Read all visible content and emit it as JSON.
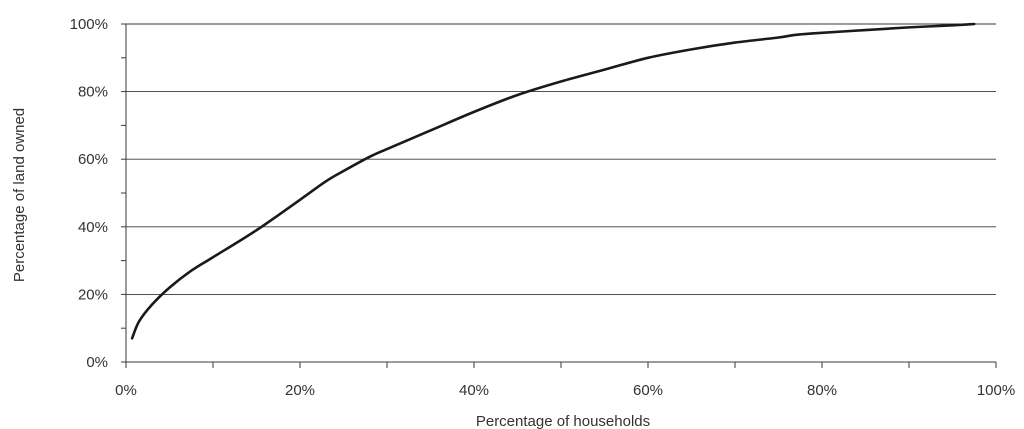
{
  "chart_data": {
    "type": "line",
    "title": "",
    "xlabel": "Percentage of households",
    "ylabel": "Percentage of land owned",
    "xlim": [
      0,
      100
    ],
    "ylim": [
      0,
      100
    ],
    "x_ticks": [
      0,
      20,
      40,
      60,
      80,
      100
    ],
    "x_tick_labels": [
      "0%",
      "20%",
      "40%",
      "60%",
      "80%",
      "100%"
    ],
    "y_ticks": [
      0,
      20,
      40,
      60,
      80,
      100
    ],
    "y_tick_labels": [
      "0%",
      "20%",
      "40%",
      "60%",
      "80%",
      "100%"
    ],
    "grid": "horizontal",
    "legend": "none",
    "line_color": "#1a1a1a",
    "series": [
      {
        "x": [
          0.7,
          1.5,
          3,
          5,
          7.5,
          10,
          15,
          20,
          23,
          25,
          28,
          30,
          35,
          40,
          45,
          50,
          55,
          60,
          65,
          70,
          75,
          77,
          80,
          85,
          90,
          95,
          97.5
        ],
        "y": [
          7,
          12,
          17,
          22,
          27,
          31,
          39,
          48,
          53.5,
          56.5,
          60.7,
          63,
          68.5,
          74,
          79,
          83,
          86.5,
          90,
          92.5,
          94.5,
          96,
          96.8,
          97.4,
          98.2,
          99,
          99.6,
          100
        ]
      }
    ]
  }
}
